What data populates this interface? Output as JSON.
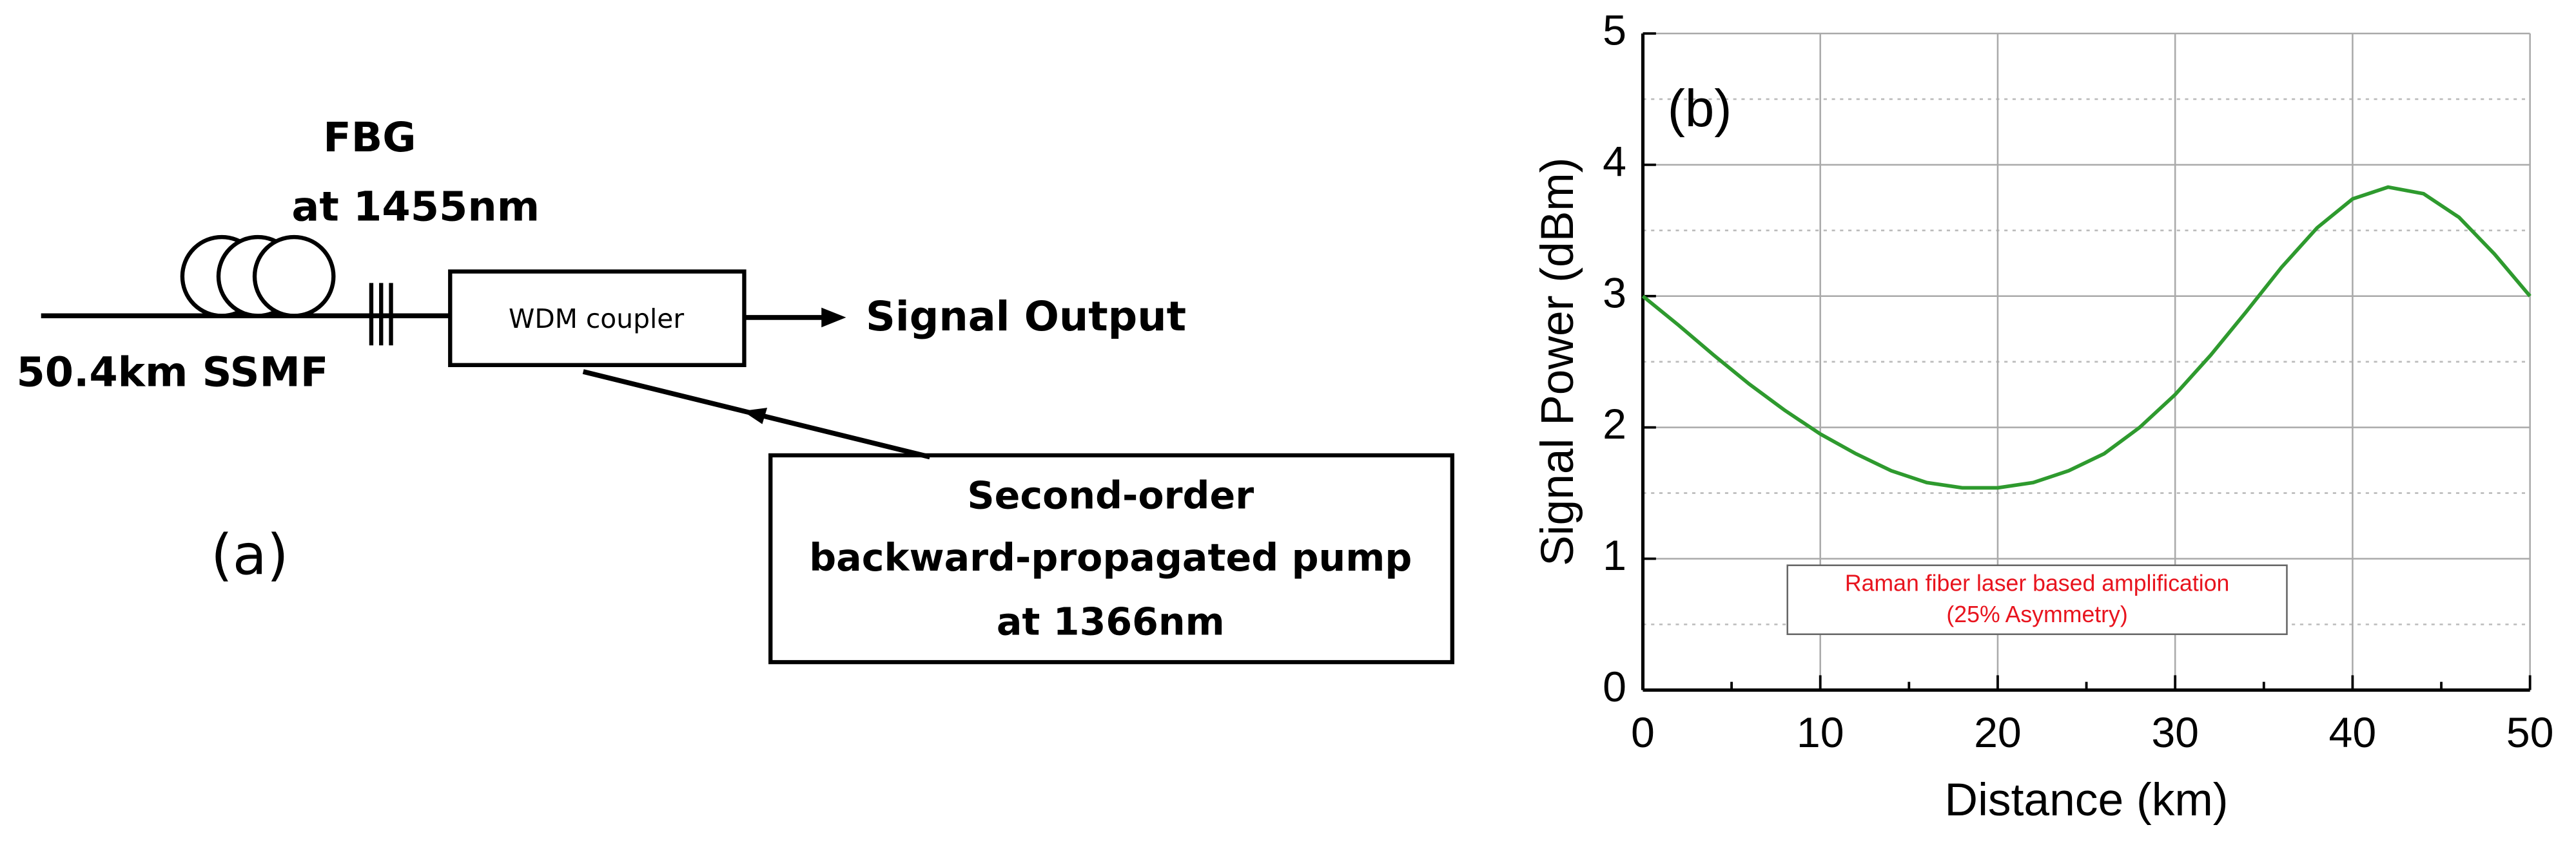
{
  "diagram": {
    "label": "(a)",
    "fiber": "50.4km SSMF",
    "fbg": [
      "FBG",
      "at 1455nm"
    ],
    "coupler": "WDM coupler",
    "output": "Signal Output",
    "pump": [
      "Second-order",
      "backward-propagated pump",
      "at 1366nm"
    ]
  },
  "chart_data": {
    "type": "line",
    "panel_label": "(b)",
    "x_label": "Distance (km)",
    "y_label": "Signal Power (dBm)",
    "annotation": [
      "Raman fiber laser based amplification",
      "(25% Asymmetry)"
    ],
    "x": [
      0,
      2,
      4,
      6,
      8,
      10,
      12,
      14,
      16,
      18,
      20,
      22,
      24,
      26,
      28,
      30,
      32,
      34,
      36,
      38,
      40,
      42,
      44,
      46,
      48,
      50
    ],
    "values": [
      3.0,
      2.78,
      2.55,
      2.33,
      2.13,
      1.95,
      1.8,
      1.67,
      1.58,
      1.54,
      1.54,
      1.58,
      1.67,
      1.8,
      2.0,
      2.25,
      2.55,
      2.88,
      3.22,
      3.52,
      3.74,
      3.83,
      3.78,
      3.6,
      3.32,
      3.0
    ],
    "color": "#2e9a2e",
    "xlim": [
      0,
      50
    ],
    "ylim": [
      0,
      5
    ],
    "xticks": [
      0,
      10,
      20,
      30,
      40,
      50
    ],
    "yticks": [
      0,
      1,
      2,
      3,
      4,
      5
    ],
    "minor_xticks": [
      5,
      15,
      25,
      35,
      45
    ],
    "minor_yticks": [
      0.5,
      1.5,
      2.5,
      3.5,
      4.5
    ],
    "grid": true
  }
}
